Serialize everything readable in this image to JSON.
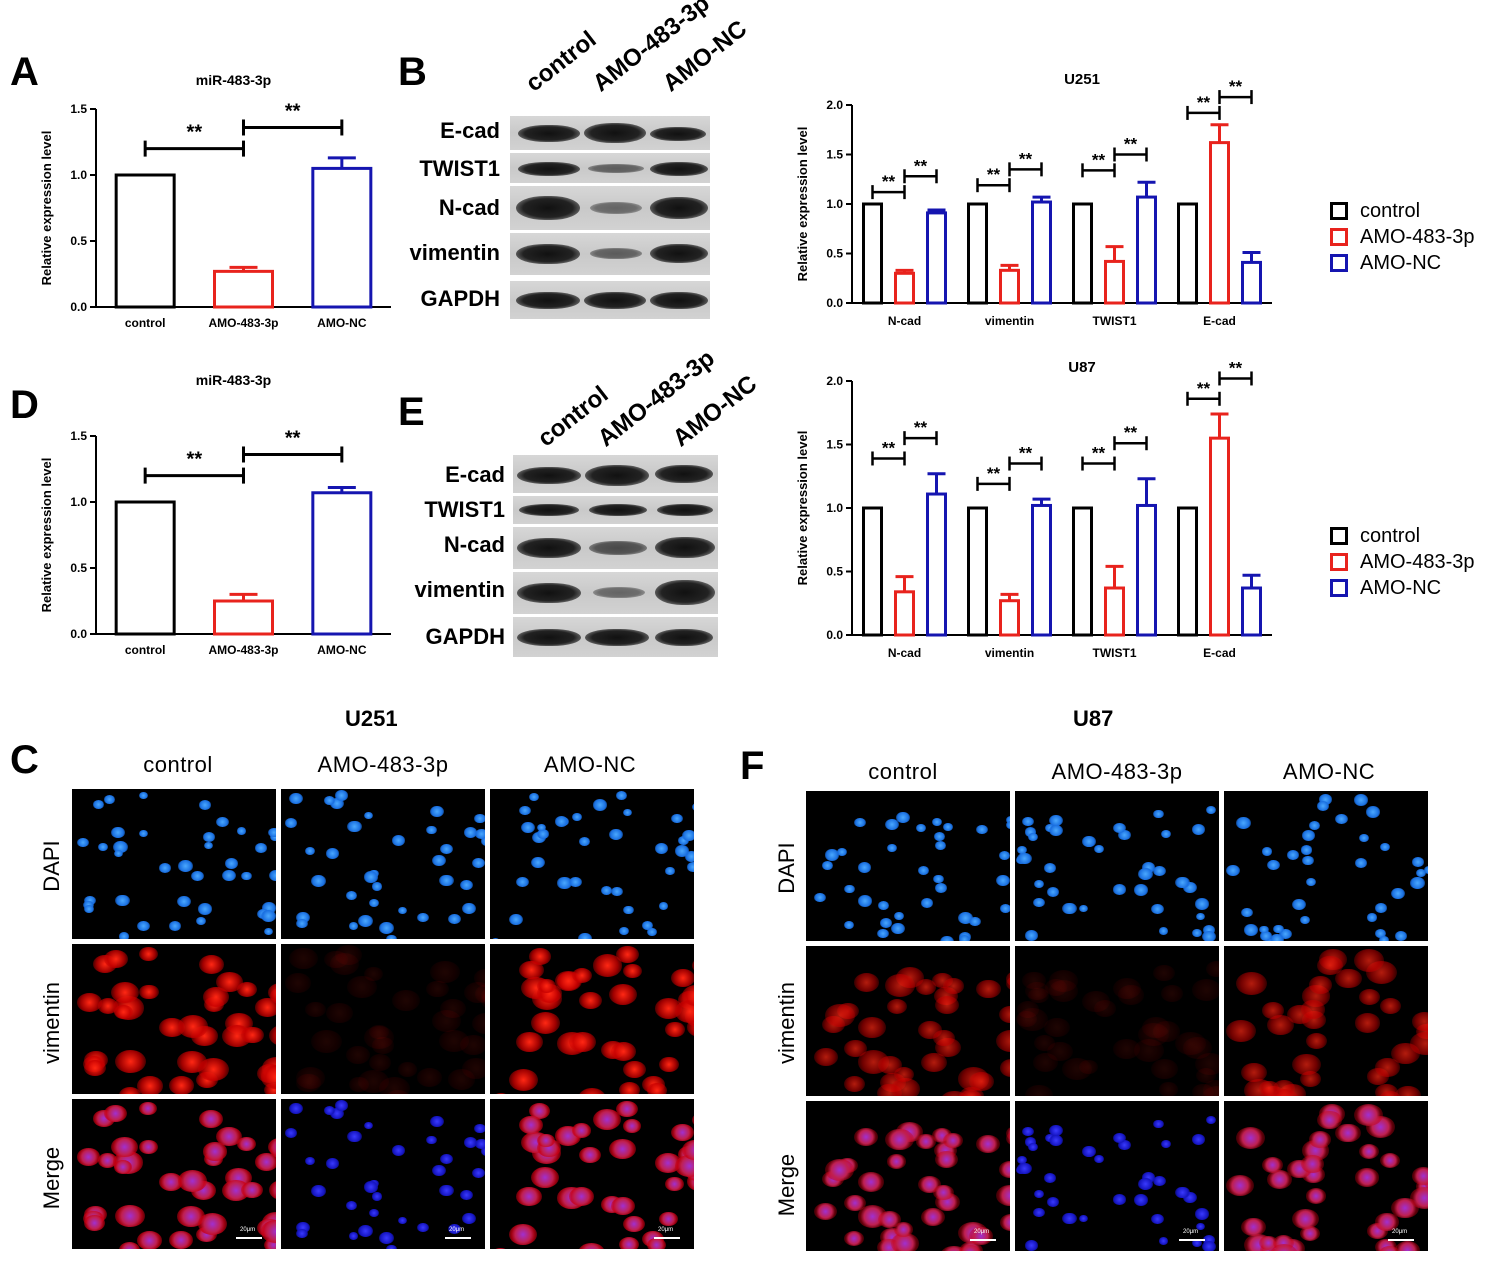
{
  "panels": {
    "A": "A",
    "B": "B",
    "C": "C",
    "D": "D",
    "E": "E",
    "F": "F"
  },
  "colors": {
    "control": "#000000",
    "amo483": "#e8231d",
    "amonc": "#1515b0"
  },
  "legend": {
    "items": [
      "control",
      "AMO-483-3p",
      "AMO-NC"
    ]
  },
  "chart_data": [
    {
      "id": "A",
      "type": "bar",
      "title": "miR-483-3p",
      "ylabel": "Relative expression level",
      "xlabel": "",
      "categories": [
        "control",
        "AMO-483-3p",
        "AMO-NC"
      ],
      "values": [
        1.0,
        0.27,
        1.05
      ],
      "errors": [
        0,
        0.03,
        0.08
      ],
      "ylim": [
        0,
        1.5
      ],
      "yticks": [
        "0.0",
        "0.5",
        "1.0",
        "1.5"
      ],
      "significance": [
        "**",
        "**"
      ]
    },
    {
      "id": "D",
      "type": "bar",
      "title": "miR-483-3p",
      "ylabel": "Relative expression level",
      "xlabel": "",
      "categories": [
        "control",
        "AMO-483-3p",
        "AMO-NC"
      ],
      "values": [
        1.0,
        0.25,
        1.07
      ],
      "errors": [
        0,
        0.05,
        0.04
      ],
      "ylim": [
        0,
        1.5
      ],
      "yticks": [
        "0.0",
        "0.5",
        "1.0",
        "1.5"
      ],
      "significance": [
        "**",
        "**"
      ]
    },
    {
      "id": "B-chart",
      "type": "bar",
      "title": "U251",
      "ylabel": "Relative expression level",
      "xlabel": "",
      "categories": [
        "N-cad",
        "vimentin",
        "TWIST1",
        "E-cad"
      ],
      "series": [
        {
          "name": "control",
          "values": [
            1.0,
            1.0,
            1.0,
            1.0
          ],
          "errors": [
            0,
            0,
            0,
            0
          ]
        },
        {
          "name": "AMO-483-3p",
          "values": [
            0.3,
            0.33,
            0.42,
            1.62
          ],
          "errors": [
            0.03,
            0.05,
            0.15,
            0.18
          ]
        },
        {
          "name": "AMO-NC",
          "values": [
            0.91,
            1.02,
            1.07,
            0.41
          ],
          "errors": [
            0.03,
            0.05,
            0.15,
            0.1
          ]
        }
      ],
      "ylim": [
        0,
        2.0
      ],
      "yticks": [
        "0.0",
        "0.5",
        "1.0",
        "1.5",
        "2.0"
      ],
      "significance": "**"
    },
    {
      "id": "E-chart",
      "type": "bar",
      "title": "U87",
      "ylabel": "Relative expression level",
      "xlabel": "",
      "categories": [
        "N-cad",
        "vimentin",
        "TWIST1",
        "E-cad"
      ],
      "series": [
        {
          "name": "control",
          "values": [
            1.0,
            1.0,
            1.0,
            1.0
          ],
          "errors": [
            0,
            0,
            0,
            0
          ]
        },
        {
          "name": "AMO-483-3p",
          "values": [
            0.34,
            0.27,
            0.37,
            1.55
          ],
          "errors": [
            0.12,
            0.05,
            0.17,
            0.19
          ]
        },
        {
          "name": "AMO-NC",
          "values": [
            1.11,
            1.02,
            1.02,
            0.37
          ],
          "errors": [
            0.16,
            0.05,
            0.21,
            0.1
          ]
        }
      ],
      "ylim": [
        0,
        2.0
      ],
      "yticks": [
        "0.0",
        "0.5",
        "1.0",
        "1.5",
        "2.0"
      ],
      "significance": "**"
    }
  ],
  "western_B": {
    "lanes": [
      "control",
      "AMO-483-3p",
      "AMO-NC"
    ],
    "rows": [
      "E-cad",
      "TWIST1",
      "N-cad",
      "vimentin",
      "GAPDH"
    ]
  },
  "western_E": {
    "lanes": [
      "control",
      "AMO-483-3p",
      "AMO-NC"
    ],
    "rows": [
      "E-cad",
      "TWIST1",
      "N-cad",
      "vimentin",
      "GAPDH"
    ]
  },
  "if_C": {
    "title": "U251",
    "columns": [
      "control",
      "AMO-483-3p",
      "AMO-NC"
    ],
    "rows": [
      "DAPI",
      "vimentin",
      "Merge"
    ],
    "scale": "20μm"
  },
  "if_F": {
    "title": "U87",
    "columns": [
      "control",
      "AMO-483-3p",
      "AMO-NC"
    ],
    "rows": [
      "DAPI",
      "vimentin",
      "Merge"
    ],
    "scale": "20μm"
  }
}
